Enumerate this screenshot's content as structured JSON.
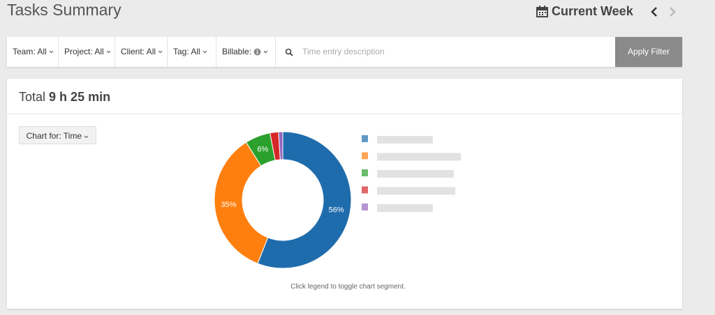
{
  "header": {
    "title": "Tasks Summary",
    "period": "Current Week"
  },
  "filters": {
    "items": [
      "Team: All",
      "Project: All",
      "Client: All",
      "Tag: All",
      "Billable:"
    ],
    "search_placeholder": "Time entry description",
    "button": "Apply Filter"
  },
  "summary": {
    "total_label": "Total",
    "total_value": "9 h 25 min",
    "chart_for": "Chart for: Time",
    "hint": "Click legend to toggle chart segment."
  },
  "chart_data": {
    "type": "pie",
    "donut": true,
    "values": [
      56,
      35,
      6,
      2,
      1
    ],
    "value_labels": [
      "56%",
      "35%",
      "6%",
      null,
      null
    ],
    "colors": [
      "#1f6cad",
      "#ff7f0e",
      "#2ca02c",
      "#d62728",
      "#9467bd"
    ]
  }
}
